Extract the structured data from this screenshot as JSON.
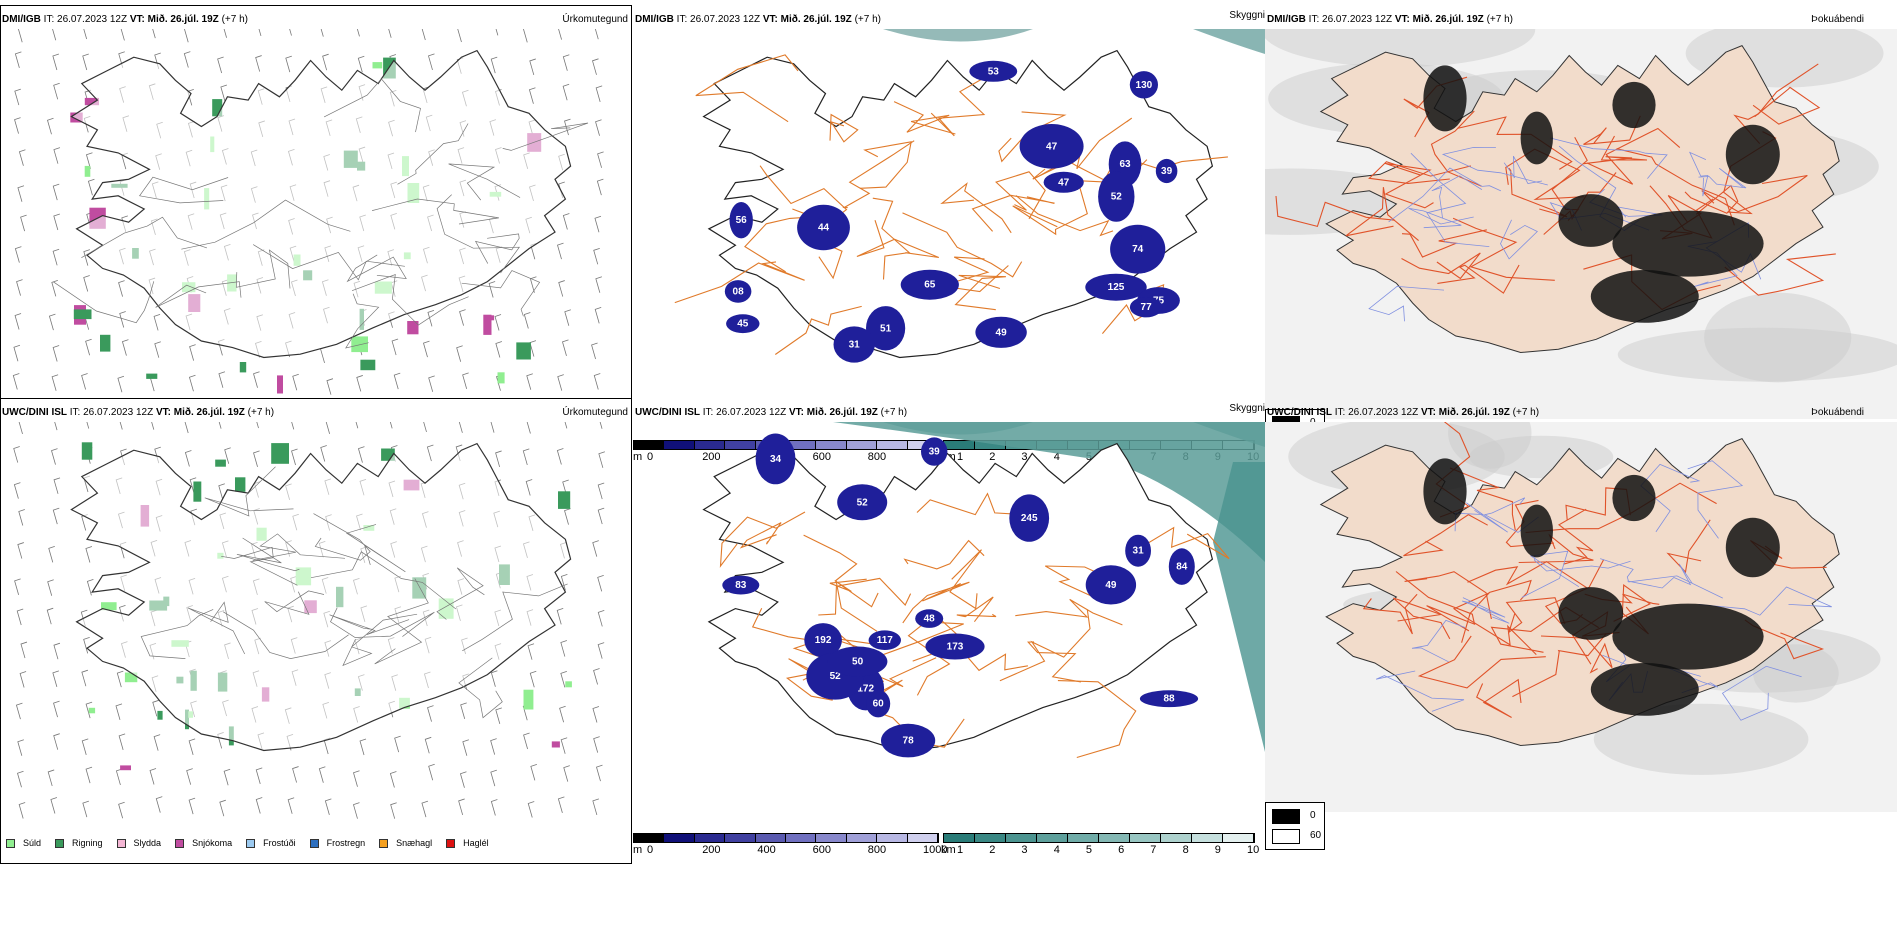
{
  "rows": [
    {
      "model": "DMI/IGB",
      "init_label": "IT:",
      "init_time": "26.07.2023 12Z",
      "valid_label": "VT:",
      "valid_time": "Mið. 26.júl. 19Z",
      "lead": "(+7 h)",
      "cloud_labels": [
        "125",
        "75",
        "45",
        "63",
        "130",
        "39",
        "52",
        "08",
        "77",
        "65",
        "56",
        "49",
        "51",
        "53",
        "47",
        "44",
        "31",
        "74",
        "47"
      ]
    },
    {
      "model": "UWC/DINI ISL",
      "init_label": "IT:",
      "init_time": "26.07.2023 12Z",
      "valid_label": "VT:",
      "valid_time": "Mið. 26.júl. 19Z",
      "lead": "(+7 h)",
      "cloud_labels": [
        "117",
        "192",
        "173",
        "172",
        "245",
        "52",
        "34",
        "49",
        "50",
        "39",
        "78",
        "52",
        "84",
        "83",
        "88",
        "60",
        "48",
        "31"
      ]
    }
  ],
  "panels": {
    "precip": {
      "name": "Úrkomutegund"
    },
    "visibility": {
      "name": "Skyggni"
    },
    "fog": {
      "name": "Þokuábendi"
    }
  },
  "precip_legend": [
    {
      "label": "Súld",
      "color": "#90ee90"
    },
    {
      "label": "Rigning",
      "color": "#3a9a5c"
    },
    {
      "label": "Slydda",
      "color": "#f4b6d4"
    },
    {
      "label": "Snjókoma",
      "color": "#c04ca0"
    },
    {
      "label": "Frostúði",
      "color": "#9ccaf0"
    },
    {
      "label": "Frostregn",
      "color": "#2d6fbf"
    },
    {
      "label": "Snæhagl",
      "color": "#f5a020"
    },
    {
      "label": "Haglél",
      "color": "#dd1111"
    }
  ],
  "cloud_base_scale": {
    "unit": "m",
    "ticks": [
      "0",
      "200",
      "400",
      "600",
      "800",
      "1000"
    ],
    "colors": [
      "#000000",
      "#101078",
      "#2a2a90",
      "#4040a0",
      "#5a5ab0",
      "#7070c0",
      "#8888cc",
      "#a0a0d8",
      "#b8b8e4",
      "#d0d0ee"
    ]
  },
  "visibility_scale": {
    "unit": "km",
    "ticks": [
      "1",
      "2",
      "3",
      "4",
      "5",
      "6",
      "7",
      "8",
      "9",
      "10"
    ],
    "colors": [
      "#2a7c78",
      "#3a8884",
      "#4c9490",
      "#5ea09c",
      "#70aca8",
      "#84b8b4",
      "#98c6c2",
      "#aed2ce",
      "#c6e0de",
      "#e4f0ef"
    ]
  },
  "fog_scale": {
    "ticks": [
      "0",
      "60"
    ],
    "colors": [
      "#000000",
      "#ffffff"
    ]
  }
}
